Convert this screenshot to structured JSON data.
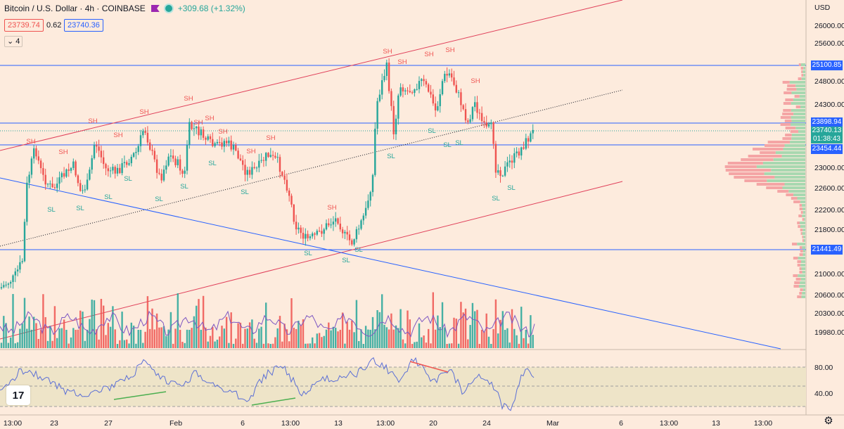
{
  "header": {
    "symbol": "Bitcoin / U.S. Dollar · 4h · COINBASE",
    "change": "+309.68 (+1.32%)",
    "sell_price": "23739.74",
    "spread": "0.62",
    "buy_price": "23740.36",
    "collapse_label": "4"
  },
  "currency": "USD",
  "price_axis": {
    "labels": [
      "26000.00",
      "25600.00",
      "24800.00",
      "24300.00",
      "23000.00",
      "22600.00",
      "22200.00",
      "21800.00",
      "21000.00",
      "20600.00",
      "20300.00",
      "19980.00",
      "80.00",
      "40.00"
    ]
  },
  "price_labels": [
    {
      "text": "25100.85",
      "color": "#2962ff"
    },
    {
      "text": "23898.94",
      "color": "#2962ff"
    },
    {
      "text": "23740.13",
      "sub": "01:38:43",
      "color": "#26a69a"
    },
    {
      "text": "23454.44",
      "color": "#2962ff"
    },
    {
      "text": "21441.49",
      "color": "#2962ff"
    }
  ],
  "time_axis": {
    "labels": [
      "13:00",
      "23",
      "27",
      "Feb",
      "6",
      "13:00",
      "13",
      "13:00",
      "20",
      "24",
      "Mar",
      "6",
      "13:00",
      "13",
      "13:00"
    ]
  },
  "annotations": {
    "sh_label": "SH",
    "sl_label": "SL"
  },
  "logo_text": "17",
  "colors": {
    "background": "#fdebdd",
    "up": "#26a69a",
    "down": "#ef5350",
    "channel": "#e0405a",
    "level": "#2962ff",
    "rsi": "#5b6fd6"
  },
  "icons": {
    "settings": "gear-icon",
    "logo": "tradingview-logo"
  }
}
